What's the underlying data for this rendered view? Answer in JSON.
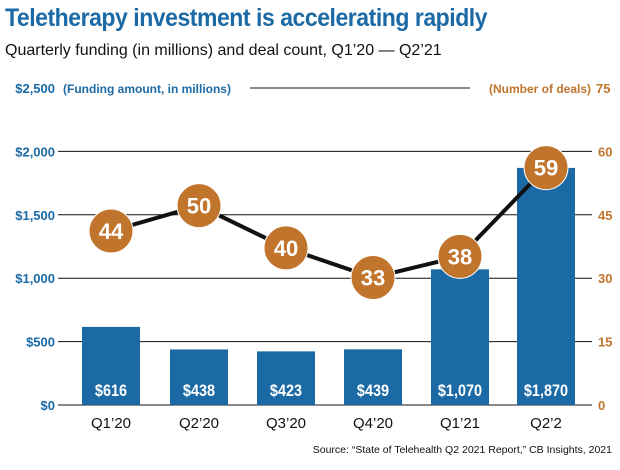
{
  "title": "Teletherapy investment is accelerating rapidly",
  "subtitle": "Quarterly funding (in millions) and deal count, Q1’20 — Q2’21",
  "source": "Source: “State of Telehealth Q2 2021 Report,” CB Insights, 2021",
  "chart_data": {
    "type": "bar",
    "categories": [
      "Q1’20",
      "Q2’20",
      "Q3’20",
      "Q4’20",
      "Q1’21",
      "Q2’2"
    ],
    "series": [
      {
        "name": "(Funding amount, in millions)",
        "type": "bar",
        "axis": "left",
        "values": [
          616,
          438,
          423,
          439,
          1070,
          1870
        ],
        "labels": [
          "$616",
          "$438",
          "$423",
          "$439",
          "$1,070",
          "$1,870"
        ]
      },
      {
        "name": "(Number of deals)",
        "type": "line",
        "axis": "right",
        "values": [
          44,
          50,
          40,
          33,
          38,
          59
        ]
      }
    ],
    "left_axis": {
      "range": [
        0,
        2500
      ],
      "ticks": [
        "$0",
        "$500",
        "$1,000",
        "$1,500",
        "$2,000",
        "$2,500"
      ]
    },
    "right_axis": {
      "range": [
        0,
        75
      ],
      "ticks": [
        "0",
        "15",
        "30",
        "45",
        "60",
        "75"
      ]
    },
    "grid": true,
    "colors": {
      "bar": "#1b6aa5",
      "line": "#111111",
      "marker": "#c0742c",
      "left_axis": "#1b6aa5",
      "right_axis": "#c0742c"
    }
  }
}
